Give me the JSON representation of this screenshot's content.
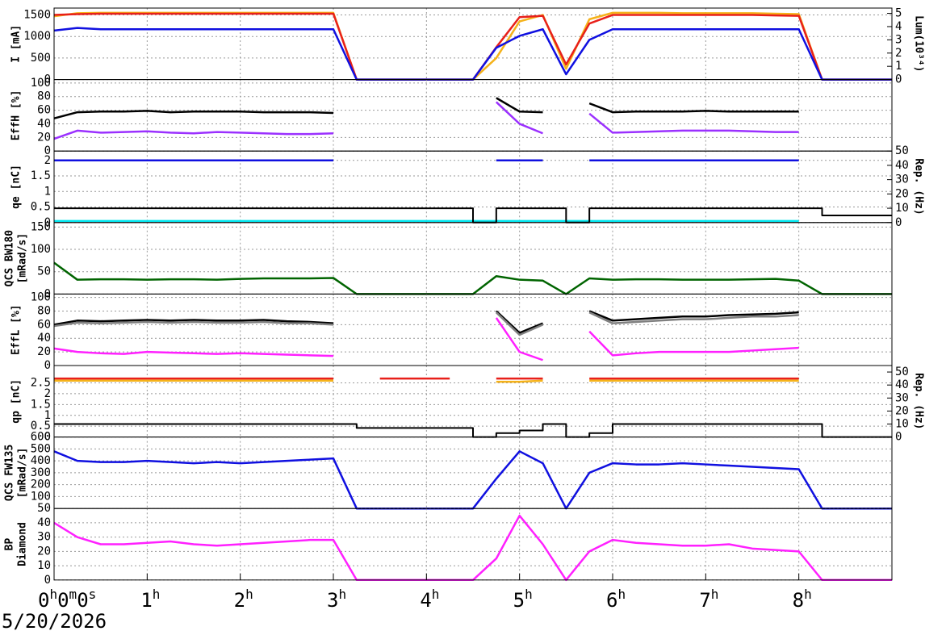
{
  "chart_data": [
    {
      "type": "line",
      "ylabel": [
        "I [mA]"
      ],
      "y2label": "Lum(10³⁴)",
      "ylim": [
        0,
        1660
      ],
      "yticks": [
        0,
        500,
        1000,
        1500
      ],
      "y2lim": [
        0,
        5.4
      ],
      "y2ticks": [
        0,
        1,
        2,
        3,
        4,
        5
      ],
      "x": [
        0,
        0.25,
        0.5,
        0.75,
        1,
        1.25,
        1.5,
        1.75,
        2,
        2.25,
        2.5,
        2.75,
        3,
        3.25,
        3.5,
        3.75,
        4,
        4.25,
        4.5,
        4.75,
        5,
        5.25,
        5.5,
        5.75,
        6,
        6.25,
        6.5,
        6.75,
        7,
        7.25,
        7.5,
        7.75,
        8,
        8.25,
        8.5,
        8.75,
        9
      ],
      "series": [
        {
          "color": "#f5b21a",
          "values": [
            1470,
            1540,
            1550,
            1550,
            1550,
            1550,
            1550,
            1550,
            1550,
            1550,
            1550,
            1550,
            1550,
            0,
            0,
            0,
            0,
            0,
            0,
            500,
            1350,
            1500,
            250,
            1400,
            1550,
            1550,
            1550,
            1540,
            1540,
            1540,
            1540,
            1530,
            1520,
            0,
            0,
            0,
            0
          ]
        },
        {
          "color": "#e8201a",
          "values": [
            1500,
            1520,
            1530,
            1530,
            1530,
            1530,
            1530,
            1530,
            1530,
            1530,
            1530,
            1530,
            1530,
            0,
            0,
            0,
            0,
            0,
            0,
            750,
            1450,
            1480,
            350,
            1300,
            1500,
            1500,
            1500,
            1500,
            1500,
            1500,
            1500,
            1490,
            1480,
            0,
            0,
            0,
            0
          ]
        },
        {
          "color": "#1010e0",
          "axis": "y2",
          "values": [
            3.7,
            3.9,
            3.8,
            3.8,
            3.8,
            3.8,
            3.8,
            3.8,
            3.8,
            3.8,
            3.8,
            3.8,
            3.8,
            0,
            0,
            0,
            0,
            0,
            0,
            2.4,
            3.3,
            3.8,
            0.4,
            3.0,
            3.8,
            3.8,
            3.8,
            3.8,
            3.8,
            3.8,
            3.8,
            3.8,
            3.8,
            0,
            0,
            0,
            0
          ]
        }
      ]
    },
    {
      "type": "line",
      "ylabel": [
        "EffH [%]"
      ],
      "ylim": [
        0,
        105
      ],
      "yticks": [
        0,
        20,
        40,
        60,
        80,
        100
      ],
      "x": [
        0,
        0.25,
        0.5,
        0.75,
        1,
        1.25,
        1.5,
        1.75,
        2,
        2.25,
        2.5,
        2.75,
        3,
        3.25,
        3.5,
        3.75,
        4,
        4.25,
        4.5,
        4.75,
        5,
        5.25,
        5.5,
        5.75,
        6,
        6.25,
        6.5,
        6.75,
        7,
        7.25,
        7.5,
        7.75,
        8,
        8.25,
        8.5,
        8.75,
        9
      ],
      "series": [
        {
          "color": "#000000",
          "values": [
            48,
            57,
            58,
            58,
            59,
            57,
            58,
            58,
            58,
            57,
            57,
            57,
            56,
            null,
            null,
            null,
            null,
            null,
            null,
            78,
            58,
            57,
            null,
            70,
            57,
            58,
            58,
            58,
            59,
            58,
            58,
            58,
            58,
            null,
            null,
            null,
            null
          ]
        },
        {
          "color": "#9b30ff",
          "values": [
            18,
            30,
            27,
            28,
            29,
            27,
            26,
            28,
            27,
            26,
            25,
            25,
            26,
            null,
            null,
            null,
            null,
            null,
            null,
            72,
            40,
            26,
            null,
            55,
            27,
            28,
            29,
            30,
            30,
            30,
            29,
            28,
            28,
            null,
            null,
            null,
            null
          ]
        }
      ]
    },
    {
      "type": "line",
      "ylabel": [
        "qe [nC]"
      ],
      "y2label": "Rep. (Hz)",
      "ylim": [
        0,
        2.3
      ],
      "yticks": [
        0,
        0.5,
        1,
        1.5,
        2
      ],
      "y2lim": [
        0,
        50
      ],
      "y2ticks": [
        0,
        10,
        20,
        30,
        40,
        50
      ],
      "x": [
        0,
        0.25,
        0.5,
        0.75,
        1,
        1.25,
        1.5,
        1.75,
        2,
        2.25,
        2.5,
        2.75,
        3,
        3.25,
        3.5,
        3.75,
        4,
        4.25,
        4.5,
        4.75,
        5,
        5.25,
        5.5,
        5.75,
        6,
        6.25,
        6.5,
        6.75,
        7,
        7.25,
        7.5,
        7.75,
        8,
        8.25,
        8.5,
        8.75,
        9
      ],
      "series": [
        {
          "color": "#1010e0",
          "values": [
            2,
            2,
            2,
            2,
            2,
            2,
            2,
            2,
            2,
            2,
            2,
            2,
            2,
            null,
            null,
            null,
            null,
            null,
            null,
            2,
            2,
            2,
            null,
            2,
            2,
            2,
            2,
            2,
            2,
            2,
            2,
            2,
            2,
            null,
            null,
            null,
            null
          ]
        },
        {
          "color": "#00e5ee",
          "values": [
            0.05,
            0.05,
            0.05,
            0.05,
            0.05,
            0.05,
            0.05,
            0.05,
            0.05,
            0.05,
            0.05,
            0.05,
            0.05,
            0.05,
            0.05,
            0.05,
            0.05,
            0.05,
            0.05,
            0.05,
            0.05,
            0.05,
            0.05,
            0.05,
            0.05,
            0.05,
            0.05,
            0.05,
            0.05,
            0.05,
            0.05,
            0.05,
            0.05,
            null,
            null,
            null,
            null
          ]
        },
        {
          "color": "#000000",
          "axis": "y2",
          "step": true,
          "values": [
            10,
            10,
            10,
            10,
            10,
            10,
            10,
            10,
            10,
            10,
            10,
            10,
            10,
            10,
            10,
            10,
            10,
            10,
            0,
            10,
            10,
            10,
            0,
            10,
            10,
            10,
            10,
            10,
            10,
            10,
            10,
            10,
            10,
            5,
            5,
            5,
            5
          ]
        }
      ]
    },
    {
      "type": "line",
      "ylabel": [
        "QCS BW180",
        "[mRad/s]"
      ],
      "ylim": [
        0,
        160
      ],
      "yticks": [
        0,
        50,
        100,
        150
      ],
      "x": [
        0,
        0.25,
        0.5,
        0.75,
        1,
        1.25,
        1.5,
        1.75,
        2,
        2.25,
        2.5,
        2.75,
        3,
        3.25,
        3.5,
        3.75,
        4,
        4.25,
        4.5,
        4.75,
        5,
        5.25,
        5.5,
        5.75,
        6,
        6.25,
        6.5,
        6.75,
        7,
        7.25,
        7.5,
        7.75,
        8,
        8.25,
        8.5,
        8.75,
        9
      ],
      "series": [
        {
          "color": "#006400",
          "values": [
            70,
            32,
            33,
            33,
            32,
            33,
            33,
            32,
            34,
            35,
            35,
            35,
            36,
            0,
            0,
            0,
            0,
            0,
            0,
            40,
            32,
            30,
            0,
            35,
            32,
            33,
            33,
            32,
            32,
            32,
            33,
            34,
            30,
            0,
            0,
            0,
            0
          ]
        }
      ]
    },
    {
      "type": "line",
      "ylabel": [
        "EffL [%]"
      ],
      "ylim": [
        0,
        105
      ],
      "yticks": [
        0,
        20,
        40,
        60,
        80,
        100
      ],
      "x": [
        0,
        0.25,
        0.5,
        0.75,
        1,
        1.25,
        1.5,
        1.75,
        2,
        2.25,
        2.5,
        2.75,
        3,
        3.25,
        3.5,
        3.75,
        4,
        4.25,
        4.5,
        4.75,
        5,
        5.25,
        5.5,
        5.75,
        6,
        6.25,
        6.5,
        6.75,
        7,
        7.25,
        7.5,
        7.75,
        8,
        8.25,
        8.5,
        8.75,
        9
      ],
      "series": [
        {
          "color": "#000000",
          "values": [
            60,
            66,
            65,
            66,
            67,
            66,
            67,
            66,
            66,
            67,
            65,
            64,
            62,
            null,
            null,
            null,
            null,
            null,
            null,
            80,
            48,
            62,
            null,
            80,
            66,
            68,
            70,
            72,
            72,
            74,
            75,
            76,
            78,
            null,
            null,
            null,
            null
          ]
        },
        {
          "color": "#808080",
          "values": [
            58,
            63,
            62,
            63,
            64,
            63,
            64,
            63,
            63,
            64,
            62,
            62,
            60,
            null,
            null,
            null,
            null,
            null,
            null,
            78,
            45,
            60,
            null,
            78,
            62,
            64,
            66,
            68,
            68,
            70,
            72,
            72,
            74,
            null,
            null,
            null,
            null
          ]
        },
        {
          "color": "#ff20ff",
          "values": [
            25,
            20,
            18,
            17,
            20,
            19,
            18,
            17,
            18,
            17,
            16,
            15,
            14,
            null,
            null,
            null,
            null,
            null,
            null,
            70,
            20,
            8,
            null,
            50,
            15,
            18,
            20,
            20,
            20,
            20,
            22,
            24,
            26,
            null,
            null,
            null,
            null
          ]
        }
      ]
    },
    {
      "type": "line",
      "ylabel": [
        "qp [nC]"
      ],
      "y2label": "Rep. (Hz)",
      "ylim": [
        0,
        3.3
      ],
      "yticks": [
        0,
        0.5,
        1,
        1.5,
        2,
        2.5
      ],
      "y2lim": [
        0,
        55
      ],
      "y2ticks": [
        0,
        10,
        20,
        30,
        40,
        50
      ],
      "x": [
        0,
        0.25,
        0.5,
        0.75,
        1,
        1.25,
        1.5,
        1.75,
        2,
        2.25,
        2.5,
        2.75,
        3,
        3.25,
        3.5,
        3.75,
        4,
        4.25,
        4.5,
        4.75,
        5,
        5.25,
        5.5,
        5.75,
        6,
        6.25,
        6.5,
        6.75,
        7,
        7.25,
        7.5,
        7.75,
        8,
        8.25,
        8.5,
        8.75,
        9
      ],
      "series": [
        {
          "color": "#e8201a",
          "values": [
            2.7,
            2.7,
            2.7,
            2.7,
            2.7,
            2.7,
            2.7,
            2.7,
            2.7,
            2.7,
            2.7,
            2.7,
            2.7,
            null,
            2.7,
            2.7,
            2.7,
            2.7,
            null,
            2.7,
            2.7,
            2.7,
            null,
            2.7,
            2.7,
            2.7,
            2.7,
            2.7,
            2.7,
            2.7,
            2.7,
            2.7,
            2.7,
            null,
            null,
            null,
            null
          ]
        },
        {
          "color": "#f5b21a",
          "values": [
            2.6,
            2.6,
            2.6,
            2.6,
            2.6,
            2.6,
            2.6,
            2.6,
            2.6,
            2.6,
            2.6,
            2.6,
            2.6,
            null,
            null,
            null,
            null,
            null,
            null,
            2.55,
            2.55,
            2.6,
            null,
            2.6,
            2.6,
            2.6,
            2.6,
            2.6,
            2.6,
            2.6,
            2.6,
            2.6,
            2.6,
            null,
            null,
            null,
            null
          ]
        },
        {
          "color": "#000000",
          "axis": "y2",
          "step": true,
          "values": [
            10,
            10,
            10,
            10,
            10,
            10,
            10,
            10,
            10,
            10,
            10,
            10,
            10,
            7,
            7,
            7,
            7,
            7,
            0,
            3,
            5,
            10,
            0,
            3,
            10,
            10,
            10,
            10,
            10,
            10,
            10,
            10,
            10,
            0,
            0,
            0,
            0
          ]
        }
      ]
    },
    {
      "type": "line",
      "ylabel": [
        "QCS FW135",
        "[mRad/s]"
      ],
      "ylim": [
        0,
        600
      ],
      "yticks": [
        100,
        200,
        300,
        400,
        500,
        600
      ],
      "x": [
        0,
        0.25,
        0.5,
        0.75,
        1,
        1.25,
        1.5,
        1.75,
        2,
        2.25,
        2.5,
        2.75,
        3,
        3.25,
        3.5,
        3.75,
        4,
        4.25,
        4.5,
        4.75,
        5,
        5.25,
        5.5,
        5.75,
        6,
        6.25,
        6.5,
        6.75,
        7,
        7.25,
        7.5,
        7.75,
        8,
        8.25,
        8.5,
        8.75,
        9
      ],
      "series": [
        {
          "color": "#1010e0",
          "values": [
            480,
            400,
            390,
            390,
            400,
            390,
            380,
            390,
            380,
            390,
            400,
            410,
            420,
            0,
            0,
            0,
            0,
            0,
            0,
            250,
            480,
            380,
            0,
            300,
            380,
            370,
            370,
            380,
            370,
            360,
            350,
            340,
            330,
            0,
            0,
            0,
            0
          ]
        }
      ]
    },
    {
      "type": "line",
      "ylabel": [
        "BP",
        "Diamond"
      ],
      "ylim": [
        0,
        50
      ],
      "yticks": [
        0,
        10,
        20,
        30,
        40,
        50
      ],
      "x": [
        0,
        0.25,
        0.5,
        0.75,
        1,
        1.25,
        1.5,
        1.75,
        2,
        2.25,
        2.5,
        2.75,
        3,
        3.25,
        3.5,
        3.75,
        4,
        4.25,
        4.5,
        4.75,
        5,
        5.25,
        5.5,
        5.75,
        6,
        6.25,
        6.5,
        6.75,
        7,
        7.25,
        7.5,
        7.75,
        8,
        8.25,
        8.5,
        8.75,
        9
      ],
      "xlim": [
        0,
        9
      ],
      "xticks": [
        {
          "value": 0,
          "label": "0h0m0s"
        },
        {
          "value": 1,
          "label": "1h"
        },
        {
          "value": 2,
          "label": "2h"
        },
        {
          "value": 3,
          "label": "3h"
        },
        {
          "value": 4,
          "label": "4h"
        },
        {
          "value": 5,
          "label": "5h"
        },
        {
          "value": 6,
          "label": "6h"
        },
        {
          "value": 7,
          "label": "7h"
        },
        {
          "value": 8,
          "label": "8h"
        }
      ],
      "date": "5/20/2026",
      "series": [
        {
          "color": "#ff20ff",
          "values": [
            40,
            30,
            25,
            25,
            26,
            27,
            25,
            24,
            25,
            26,
            27,
            28,
            28,
            0,
            0,
            0,
            0,
            0,
            0,
            15,
            45,
            25,
            0,
            20,
            28,
            26,
            25,
            24,
            24,
            25,
            22,
            21,
            20,
            0,
            0,
            0,
            0
          ]
        }
      ]
    }
  ]
}
